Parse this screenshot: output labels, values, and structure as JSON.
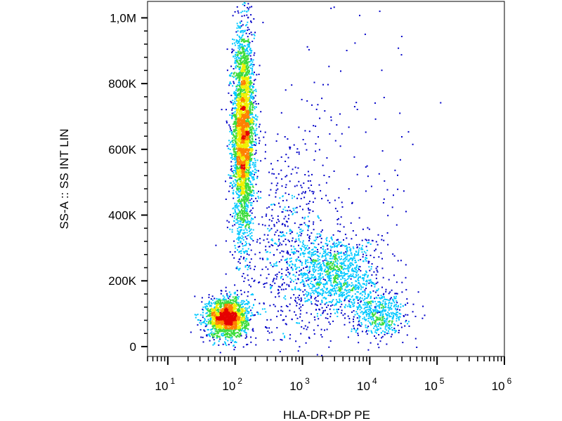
{
  "chart_data": {
    "type": "scatter",
    "subtype": "flow-cytometry-density-dot-plot",
    "title": "",
    "xlabel": "HLA-DR+DP PE",
    "ylabel": "SS-A :: SS INT LIN",
    "x_scale": "log",
    "y_scale": "linear",
    "xlim": [
      5,
      1000000
    ],
    "ylim": [
      -30000,
      1050000
    ],
    "x_ticks": [
      {
        "base": "10",
        "exp": "1",
        "value": 10
      },
      {
        "base": "10",
        "exp": "2",
        "value": 100
      },
      {
        "base": "10",
        "exp": "3",
        "value": 1000
      },
      {
        "base": "10",
        "exp": "4",
        "value": 10000
      },
      {
        "base": "10",
        "exp": "5",
        "value": 100000
      },
      {
        "base": "10",
        "exp": "6",
        "value": 1000000
      }
    ],
    "y_ticks": [
      {
        "label": "0",
        "value": 0
      },
      {
        "label": "200K",
        "value": 200000
      },
      {
        "label": "400K",
        "value": 400000
      },
      {
        "label": "600K",
        "value": 600000
      },
      {
        "label": "800K",
        "value": 800000
      },
      {
        "label": "1,0M",
        "value": 1000000
      }
    ],
    "grid": false,
    "legend": "none",
    "density_colormap": [
      "#0000c8",
      "#00c8ff",
      "#3cdc3c",
      "#f0f000",
      "#ff8000",
      "#e60000"
    ],
    "populations": [
      {
        "x_center": 130,
        "x_log_spread": 0.08,
        "y_center": 650000,
        "y_spread": 155000,
        "events": 3400
      },
      {
        "x_center": 75,
        "x_log_spread": 0.15,
        "y_center": 90000,
        "y_spread": 30000,
        "events": 1800
      },
      {
        "x_center": 3200,
        "x_log_spread": 0.32,
        "y_center": 220000,
        "y_spread": 60000,
        "events": 1100
      },
      {
        "x_center": 14000,
        "x_log_spread": 0.2,
        "y_center": 100000,
        "y_spread": 35000,
        "events": 500
      },
      {
        "x_center": 700,
        "x_log_spread": 0.35,
        "y_center": 300000,
        "y_spread": 160000,
        "events": 700
      },
      {
        "x_center": 5000,
        "x_log_spread": 0.55,
        "y_center": 550000,
        "y_spread": 250000,
        "events": 120
      }
    ]
  }
}
